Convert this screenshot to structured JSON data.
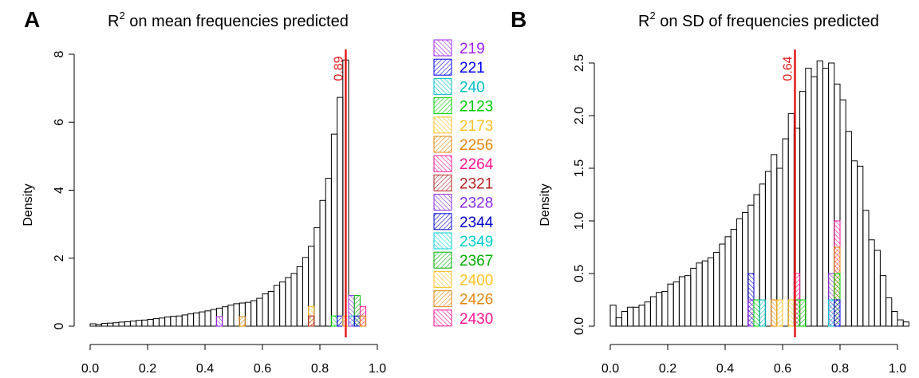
{
  "panels": [
    {
      "letter": "A",
      "title_main": "R",
      "title_sup": "2",
      "title_rest": " on mean frequencies predicted",
      "ylabel": "Density"
    },
    {
      "letter": "B",
      "title_main": "R",
      "title_sup": "2",
      "title_rest": " on SD of frequencies predicted",
      "ylabel": "Density"
    }
  ],
  "legend": {
    "entries": [
      {
        "label": "219",
        "color": "#a020f0"
      },
      {
        "label": "221",
        "color": "#0000ff"
      },
      {
        "label": "240",
        "color": "#00bfc4"
      },
      {
        "label": "2123",
        "color": "#00cd00"
      },
      {
        "label": "2173",
        "color": "#ffc125"
      },
      {
        "label": "2256",
        "color": "#e6850e"
      },
      {
        "label": "2264",
        "color": "#ff1493"
      },
      {
        "label": "2321",
        "color": "#b22222"
      },
      {
        "label": "2328",
        "color": "#8a2be2"
      },
      {
        "label": "2344",
        "color": "#0000cd"
      },
      {
        "label": "2349",
        "color": "#00ced1"
      },
      {
        "label": "2367",
        "color": "#00b000"
      },
      {
        "label": "2400",
        "color": "#ffc125"
      },
      {
        "label": "2426",
        "color": "#e6850e"
      },
      {
        "label": "2430",
        "color": "#ff1493"
      }
    ]
  },
  "chart_data": [
    {
      "type": "histogram",
      "panel": "A",
      "title": "R2 on mean frequencies predicted",
      "xlabel": "",
      "ylabel": "Density",
      "xlim": [
        0.0,
        1.0
      ],
      "ylim": [
        0,
        8
      ],
      "x_ticks": [
        "0.0",
        "0.2",
        "0.4",
        "0.6",
        "0.8",
        "1.0"
      ],
      "y_ticks": [
        "0",
        "2",
        "4",
        "6",
        "8"
      ],
      "bin_start": 0.0,
      "bin_width": 0.02,
      "densities": [
        0.07,
        0.05,
        0.08,
        0.09,
        0.1,
        0.12,
        0.13,
        0.15,
        0.17,
        0.18,
        0.2,
        0.22,
        0.24,
        0.27,
        0.29,
        0.3,
        0.33,
        0.36,
        0.39,
        0.42,
        0.45,
        0.49,
        0.53,
        0.57,
        0.62,
        0.66,
        0.68,
        0.7,
        0.75,
        0.82,
        0.95,
        1.02,
        1.2,
        1.3,
        1.43,
        1.55,
        1.75,
        2.02,
        2.35,
        2.9,
        3.7,
        4.35,
        5.65,
        6.73,
        7.83
      ],
      "vline": {
        "x": 0.89,
        "label": "0.89",
        "color": "#e31a1c"
      },
      "highlight_bars": [
        {
          "x0": 0.44,
          "x1": 0.46,
          "h": 0.28,
          "color": "#a020f0"
        },
        {
          "x0": 0.52,
          "x1": 0.54,
          "h": 0.28,
          "color": "#e6850e"
        },
        {
          "x0": 0.76,
          "x1": 0.78,
          "h": 0.58,
          "color": "#ffc125"
        },
        {
          "x0": 0.76,
          "x1": 0.78,
          "h": 0.3,
          "color": "#b22222"
        },
        {
          "x0": 0.84,
          "x1": 0.86,
          "h": 0.3,
          "color": "#00cd00"
        },
        {
          "x0": 0.86,
          "x1": 0.88,
          "h": 0.3,
          "color": "#0000ff"
        },
        {
          "x0": 0.88,
          "x1": 0.9,
          "h": 0.3,
          "color": "#ffc125"
        },
        {
          "x0": 0.9,
          "x1": 0.92,
          "h": 0.3,
          "color": "#00ced1"
        },
        {
          "x0": 0.9,
          "x1": 0.92,
          "h": 0.9,
          "color": "#8a2be2"
        },
        {
          "x0": 0.92,
          "x1": 0.94,
          "h": 0.9,
          "color": "#00b000"
        },
        {
          "x0": 0.92,
          "x1": 0.94,
          "h": 0.3,
          "color": "#0000cd"
        },
        {
          "x0": 0.94,
          "x1": 0.96,
          "h": 0.58,
          "color": "#ff1493"
        },
        {
          "x0": 0.94,
          "x1": 0.96,
          "h": 0.3,
          "color": "#e6850e"
        }
      ]
    },
    {
      "type": "histogram",
      "panel": "B",
      "title": "R2 on SD of frequencies predicted",
      "xlabel": "",
      "ylabel": "Density",
      "xlim": [
        0.0,
        1.0
      ],
      "ylim": [
        0,
        2.5
      ],
      "x_ticks": [
        "0.0",
        "0.2",
        "0.4",
        "0.6",
        "0.8",
        "1.0"
      ],
      "y_ticks": [
        "0.0",
        "0.5",
        "1.0",
        "1.5",
        "2.0",
        "2.5"
      ],
      "bin_start": 0.0,
      "bin_width": 0.02,
      "densities": [
        0.2,
        0.08,
        0.14,
        0.18,
        0.18,
        0.2,
        0.23,
        0.28,
        0.32,
        0.33,
        0.4,
        0.42,
        0.47,
        0.48,
        0.55,
        0.6,
        0.62,
        0.65,
        0.7,
        0.78,
        0.85,
        0.92,
        1.02,
        1.08,
        1.15,
        1.25,
        1.35,
        1.47,
        1.63,
        1.5,
        1.78,
        2.02,
        1.88,
        2.23,
        2.45,
        2.37,
        2.52,
        2.45,
        2.5,
        2.3,
        2.15,
        1.85,
        1.57,
        1.52,
        1.1,
        0.82,
        0.72,
        0.48,
        0.27,
        0.14,
        0.06,
        0.04
      ],
      "vline": {
        "x": 0.643,
        "label": "0.64",
        "color": "#e31a1c"
      },
      "highlight_bars": [
        {
          "x0": 0.48,
          "x1": 0.5,
          "h": 0.5,
          "color": "#0000cd"
        },
        {
          "x0": 0.48,
          "x1": 0.5,
          "h": 0.25,
          "color": "#a020f0"
        },
        {
          "x0": 0.5,
          "x1": 0.52,
          "h": 0.25,
          "color": "#00cd00"
        },
        {
          "x0": 0.52,
          "x1": 0.54,
          "h": 0.25,
          "color": "#00bfc4"
        },
        {
          "x0": 0.56,
          "x1": 0.58,
          "h": 0.25,
          "color": "#e6850e"
        },
        {
          "x0": 0.58,
          "x1": 0.6,
          "h": 0.25,
          "color": "#ffc125"
        },
        {
          "x0": 0.62,
          "x1": 0.64,
          "h": 0.25,
          "color": "#ffc125"
        },
        {
          "x0": 0.64,
          "x1": 0.66,
          "h": 0.5,
          "color": "#ff1493"
        },
        {
          "x0": 0.64,
          "x1": 0.66,
          "h": 0.25,
          "color": "#00b000"
        },
        {
          "x0": 0.66,
          "x1": 0.68,
          "h": 0.25,
          "color": "#00cd00"
        },
        {
          "x0": 0.76,
          "x1": 0.78,
          "h": 0.5,
          "color": "#8a2be2"
        },
        {
          "x0": 0.76,
          "x1": 0.78,
          "h": 0.25,
          "color": "#00ced1"
        },
        {
          "x0": 0.78,
          "x1": 0.8,
          "h": 1.0,
          "color": "#ff1493"
        },
        {
          "x0": 0.78,
          "x1": 0.8,
          "h": 0.75,
          "color": "#e6850e"
        },
        {
          "x0": 0.78,
          "x1": 0.8,
          "h": 0.5,
          "color": "#00cd00"
        },
        {
          "x0": 0.78,
          "x1": 0.8,
          "h": 0.25,
          "color": "#0000ff"
        }
      ]
    }
  ]
}
